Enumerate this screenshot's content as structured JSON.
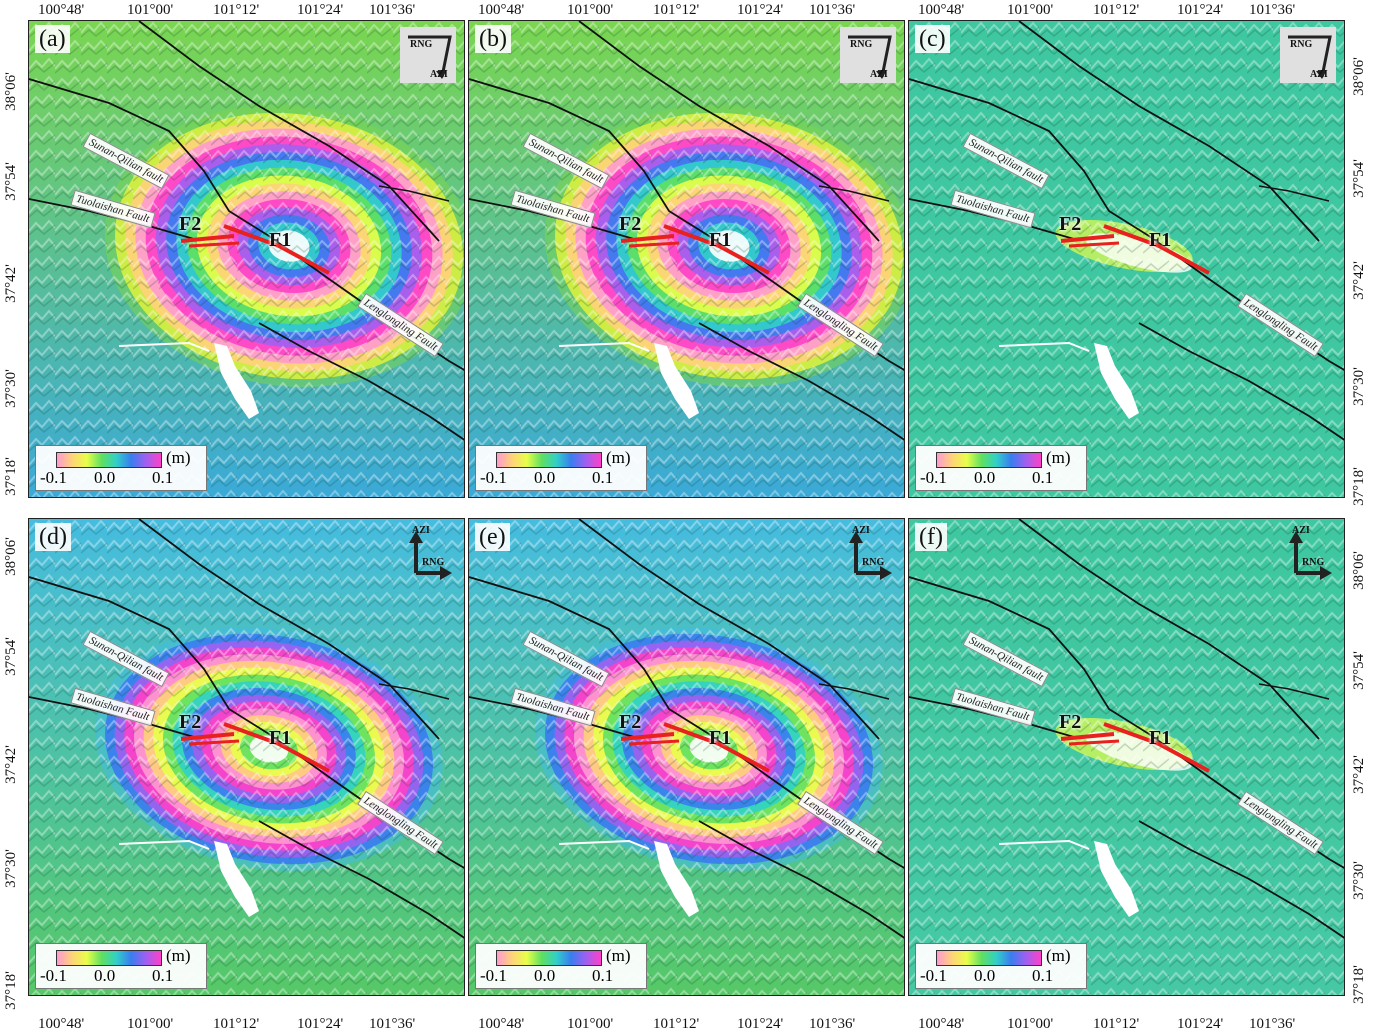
{
  "axes": {
    "lon_ticks": [
      "100°48'",
      "101°00'",
      "101°12'",
      "101°24'",
      "101°36'"
    ],
    "lat_ticks": [
      "38°06'",
      "37°54'",
      "37°42'",
      "37°30'",
      "37°18'"
    ]
  },
  "legend": {
    "unit": "(m)",
    "ticks": [
      "-0.1",
      "0.0",
      "0.1"
    ]
  },
  "labels": {
    "f1": "F1",
    "f2": "F2",
    "sunan": "Sunan-Qilian fault",
    "tuolai": "Tuolaishan Fault",
    "leng": "Lenglongling Fault",
    "rng": "RNG",
    "azi": "AZI"
  },
  "panels": [
    {
      "id": "a",
      "label": "(a)",
      "type": "asc",
      "pattern": "full"
    },
    {
      "id": "b",
      "label": "(b)",
      "type": "asc",
      "pattern": "full"
    },
    {
      "id": "c",
      "label": "(c)",
      "type": "asc",
      "pattern": "residual"
    },
    {
      "id": "d",
      "label": "(d)",
      "type": "desc",
      "pattern": "full"
    },
    {
      "id": "e",
      "label": "(e)",
      "type": "desc",
      "pattern": "full"
    },
    {
      "id": "f",
      "label": "(f)",
      "type": "desc",
      "pattern": "residual"
    }
  ]
}
